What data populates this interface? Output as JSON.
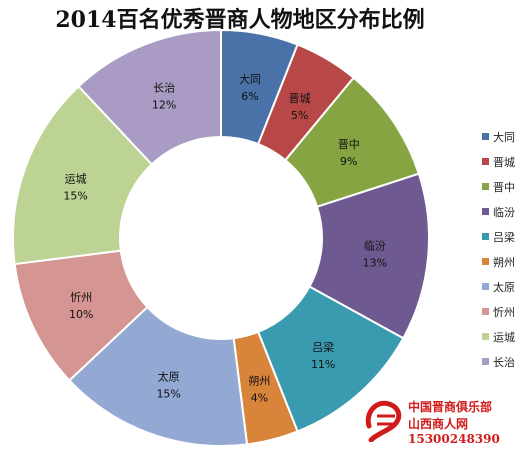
{
  "chart_data": {
    "type": "donut",
    "title": "2014百名优秀晋商人物地区分布比例",
    "series": [
      {
        "label": "大同",
        "value": 6,
        "display": "6%",
        "color": "#4a72a8"
      },
      {
        "label": "晋城",
        "value": 5,
        "display": "5%",
        "color": "#b84848"
      },
      {
        "label": "晋中",
        "value": 9,
        "display": "9%",
        "color": "#87a443"
      },
      {
        "label": "临汾",
        "value": 13,
        "display": "13%",
        "color": "#6e5a91"
      },
      {
        "label": "吕梁",
        "value": 11,
        "display": "11%",
        "color": "#3a9ab0"
      },
      {
        "label": "朔州",
        "value": 4,
        "display": "4%",
        "color": "#d8843a"
      },
      {
        "label": "太原",
        "value": 15,
        "display": "15%",
        "color": "#93a9d4"
      },
      {
        "label": "忻州",
        "value": 10,
        "display": "10%",
        "color": "#d59592"
      },
      {
        "label": "运城",
        "value": 15,
        "display": "15%",
        "color": "#bdd393"
      },
      {
        "label": "长治",
        "value": 12,
        "display": "12%",
        "color": "#a99bc3"
      }
    ],
    "legend_position": "right"
  },
  "watermark": {
    "line1": "中国晋商俱乐部",
    "line2": "山西商人网",
    "line3": "15300248390",
    "logo_glyph": "晋",
    "color": "#d11a1a"
  }
}
